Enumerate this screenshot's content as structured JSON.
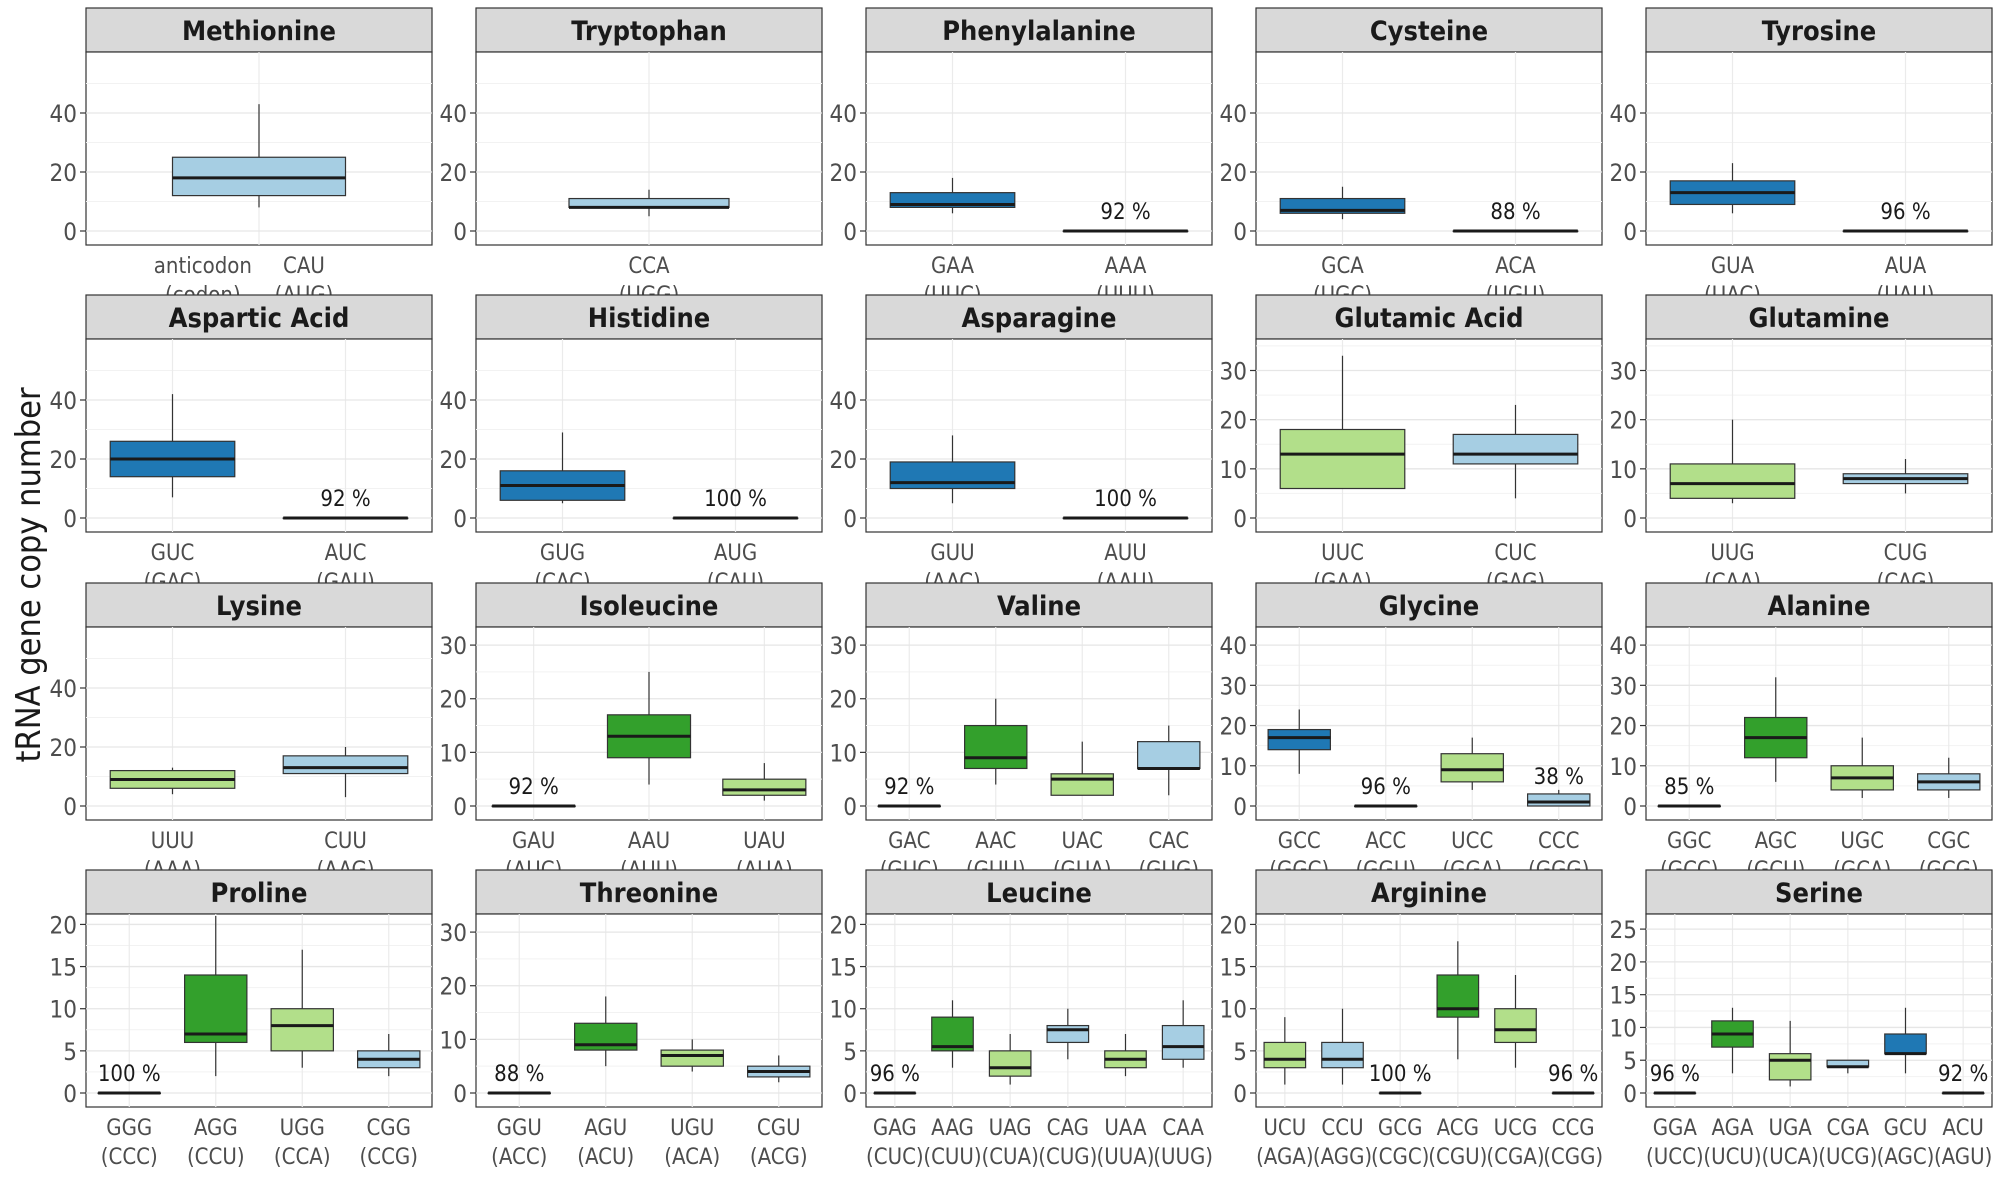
{
  "chart_data": {
    "type": "box",
    "ylabel": "tRNA gene copy number",
    "colors": {
      "dark_blue": "#1f78b4",
      "light_blue": "#a6cee3",
      "dark_green": "#33a02c",
      "light_green": "#b2df8a"
    },
    "panels": [
      {
        "title": "Methionine",
        "ylim": [
          0,
          60
        ],
        "yticks": [
          0,
          20,
          40
        ],
        "boxes": [
          {
            "codon": "CAU",
            "aa_codon": "(AUG)",
            "color": "light_blue",
            "min": 8,
            "q1": 12,
            "median": 18,
            "q3": 25,
            "max": 43
          }
        ],
        "key": {
          "codon": "anticodon",
          "aa_codon": "(codon)"
        }
      },
      {
        "title": "Tryptophan",
        "ylim": [
          0,
          60
        ],
        "yticks": [
          0,
          20,
          40
        ],
        "boxes": [
          {
            "codon": "CCA",
            "aa_codon": "(UGG)",
            "color": "light_blue",
            "min": 5,
            "q1": 8,
            "median": 8,
            "q3": 11,
            "max": 14
          }
        ]
      },
      {
        "title": "Phenylalanine",
        "ylim": [
          0,
          60
        ],
        "yticks": [
          0,
          20,
          40
        ],
        "boxes": [
          {
            "codon": "GAA",
            "aa_codon": "(UUC)",
            "color": "dark_blue",
            "min": 6,
            "q1": 8,
            "median": 9,
            "q3": 13,
            "max": 18
          },
          {
            "codon": "AAA",
            "aa_codon": "(UUU)",
            "color": "dark_blue",
            "min": 0,
            "q1": 0,
            "median": 0,
            "q3": 0,
            "max": 0,
            "pct": "92 %"
          }
        ]
      },
      {
        "title": "Cysteine",
        "ylim": [
          0,
          60
        ],
        "yticks": [
          0,
          20,
          40
        ],
        "boxes": [
          {
            "codon": "GCA",
            "aa_codon": "(UGC)",
            "color": "dark_blue",
            "min": 4,
            "q1": 6,
            "median": 7,
            "q3": 11,
            "max": 15
          },
          {
            "codon": "ACA",
            "aa_codon": "(UGU)",
            "color": "dark_blue",
            "min": 0,
            "q1": 0,
            "median": 0,
            "q3": 0,
            "max": 0,
            "pct": "88 %"
          }
        ]
      },
      {
        "title": "Tyrosine",
        "ylim": [
          0,
          60
        ],
        "yticks": [
          0,
          20,
          40
        ],
        "boxes": [
          {
            "codon": "GUA",
            "aa_codon": "(UAC)",
            "color": "dark_blue",
            "min": 6,
            "q1": 9,
            "median": 13,
            "q3": 17,
            "max": 23
          },
          {
            "codon": "AUA",
            "aa_codon": "(UAU)",
            "color": "dark_blue",
            "min": 0,
            "q1": 0,
            "median": 0,
            "q3": 0,
            "max": 0,
            "pct": "96 %"
          }
        ]
      },
      {
        "title": "Aspartic Acid",
        "ylim": [
          0,
          60
        ],
        "yticks": [
          0,
          20,
          40
        ],
        "boxes": [
          {
            "codon": "GUC",
            "aa_codon": "(GAC)",
            "color": "dark_blue",
            "min": 7,
            "q1": 14,
            "median": 20,
            "q3": 26,
            "max": 42
          },
          {
            "codon": "AUC",
            "aa_codon": "(GAU)",
            "color": "dark_blue",
            "min": 0,
            "q1": 0,
            "median": 0,
            "q3": 0,
            "max": 0,
            "pct": "92 %"
          }
        ]
      },
      {
        "title": "Histidine",
        "ylim": [
          0,
          60
        ],
        "yticks": [
          0,
          20,
          40
        ],
        "boxes": [
          {
            "codon": "GUG",
            "aa_codon": "(CAC)",
            "color": "dark_blue",
            "min": 5,
            "q1": 6,
            "median": 11,
            "q3": 16,
            "max": 29
          },
          {
            "codon": "AUG",
            "aa_codon": "(CAU)",
            "color": "dark_blue",
            "min": 0,
            "q1": 0,
            "median": 0,
            "q3": 0,
            "max": 0,
            "pct": "100 %"
          }
        ]
      },
      {
        "title": "Asparagine",
        "ylim": [
          0,
          60
        ],
        "yticks": [
          0,
          20,
          40
        ],
        "boxes": [
          {
            "codon": "GUU",
            "aa_codon": "(AAC)",
            "color": "dark_blue",
            "min": 5,
            "q1": 10,
            "median": 12,
            "q3": 19,
            "max": 28
          },
          {
            "codon": "AUU",
            "aa_codon": "(AAU)",
            "color": "dark_blue",
            "min": 0,
            "q1": 0,
            "median": 0,
            "q3": 0,
            "max": 0,
            "pct": "100 %"
          }
        ]
      },
      {
        "title": "Glutamic Acid",
        "ylim": [
          0,
          36
        ],
        "yticks": [
          0,
          10,
          20,
          30
        ],
        "boxes": [
          {
            "codon": "UUC",
            "aa_codon": "(GAA)",
            "color": "light_green",
            "min": 6,
            "q1": 6,
            "median": 13,
            "q3": 18,
            "max": 33
          },
          {
            "codon": "CUC",
            "aa_codon": "(GAG)",
            "color": "light_blue",
            "min": 4,
            "q1": 11,
            "median": 13,
            "q3": 17,
            "max": 23
          }
        ]
      },
      {
        "title": "Glutamine",
        "ylim": [
          0,
          36
        ],
        "yticks": [
          0,
          10,
          20,
          30
        ],
        "boxes": [
          {
            "codon": "UUG",
            "aa_codon": "(CAA)",
            "color": "light_green",
            "min": 3,
            "q1": 4,
            "median": 7,
            "q3": 11,
            "max": 20
          },
          {
            "codon": "CUG",
            "aa_codon": "(CAG)",
            "color": "light_blue",
            "min": 5,
            "q1": 7,
            "median": 8,
            "q3": 9,
            "max": 12
          }
        ]
      },
      {
        "title": "Lysine",
        "ylim": [
          0,
          60
        ],
        "yticks": [
          0,
          20,
          40
        ],
        "boxes": [
          {
            "codon": "UUU",
            "aa_codon": "(AAA)",
            "color": "light_green",
            "min": 4,
            "q1": 6,
            "median": 9,
            "q3": 12,
            "max": 13
          },
          {
            "codon": "CUU",
            "aa_codon": "(AAG)",
            "color": "light_blue",
            "min": 3,
            "q1": 11,
            "median": 13,
            "q3": 17,
            "max": 20
          }
        ]
      },
      {
        "title": "Isoleucine",
        "ylim": [
          0,
          33
        ],
        "yticks": [
          0,
          10,
          20,
          30
        ],
        "boxes": [
          {
            "codon": "GAU",
            "aa_codon": "(AUC)",
            "color": "dark_blue",
            "min": 0,
            "q1": 0,
            "median": 0,
            "q3": 0,
            "max": 0,
            "pct": "92 %"
          },
          {
            "codon": "AAU",
            "aa_codon": "(AUU)",
            "color": "dark_green",
            "min": 4,
            "q1": 9,
            "median": 13,
            "q3": 17,
            "max": 25
          },
          {
            "codon": "UAU",
            "aa_codon": "(AUA)",
            "color": "light_green",
            "min": 1,
            "q1": 2,
            "median": 3,
            "q3": 5,
            "max": 8
          }
        ]
      },
      {
        "title": "Valine",
        "ylim": [
          0,
          33
        ],
        "yticks": [
          0,
          10,
          20,
          30
        ],
        "boxes": [
          {
            "codon": "GAC",
            "aa_codon": "(GUC)",
            "color": "dark_blue",
            "min": 0,
            "q1": 0,
            "median": 0,
            "q3": 0,
            "max": 0,
            "pct": "92 %"
          },
          {
            "codon": "AAC",
            "aa_codon": "(GUU)",
            "color": "dark_green",
            "min": 4,
            "q1": 7,
            "median": 9,
            "q3": 15,
            "max": 20
          },
          {
            "codon": "UAC",
            "aa_codon": "(GUA)",
            "color": "light_green",
            "min": 2,
            "q1": 2,
            "median": 5,
            "q3": 6,
            "max": 12
          },
          {
            "codon": "CAC",
            "aa_codon": "(GUG)",
            "color": "light_blue",
            "min": 2,
            "q1": 7,
            "median": 7,
            "q3": 12,
            "max": 15
          }
        ]
      },
      {
        "title": "Glycine",
        "ylim": [
          0,
          44
        ],
        "yticks": [
          0,
          10,
          20,
          30,
          40
        ],
        "boxes": [
          {
            "codon": "GCC",
            "aa_codon": "(GGC)",
            "color": "dark_blue",
            "min": 8,
            "q1": 14,
            "median": 17,
            "q3": 19,
            "max": 24
          },
          {
            "codon": "ACC",
            "aa_codon": "(GGU)",
            "color": "dark_blue",
            "min": 0,
            "q1": 0,
            "median": 0,
            "q3": 0,
            "max": 0,
            "pct": "96 %"
          },
          {
            "codon": "UCC",
            "aa_codon": "(GGA)",
            "color": "light_green",
            "min": 4,
            "q1": 6,
            "median": 9,
            "q3": 13,
            "max": 17
          },
          {
            "codon": "CCC",
            "aa_codon": "(GGG)",
            "color": "light_blue",
            "min": 0,
            "q1": 0,
            "median": 1,
            "q3": 3,
            "max": 4,
            "pct": "38 %"
          }
        ]
      },
      {
        "title": "Alanine",
        "ylim": [
          0,
          44
        ],
        "yticks": [
          0,
          10,
          20,
          30,
          40
        ],
        "boxes": [
          {
            "codon": "GGC",
            "aa_codon": "(GCC)",
            "color": "dark_blue",
            "min": 0,
            "q1": 0,
            "median": 0,
            "q3": 0,
            "max": 0,
            "pct": "85 %"
          },
          {
            "codon": "AGC",
            "aa_codon": "(GCU)",
            "color": "dark_green",
            "min": 6,
            "q1": 12,
            "median": 17,
            "q3": 22,
            "max": 32
          },
          {
            "codon": "UGC",
            "aa_codon": "(GCA)",
            "color": "light_green",
            "min": 2,
            "q1": 4,
            "median": 7,
            "q3": 10,
            "max": 17
          },
          {
            "codon": "CGC",
            "aa_codon": "(GCG)",
            "color": "light_blue",
            "min": 2,
            "q1": 4,
            "median": 6,
            "q3": 8,
            "max": 12
          }
        ]
      },
      {
        "title": "Proline",
        "ylim": [
          0,
          21
        ],
        "yticks": [
          0,
          5,
          10,
          15,
          20
        ],
        "boxes": [
          {
            "codon": "GGG",
            "aa_codon": "(CCC)",
            "color": "dark_blue",
            "min": 0,
            "q1": 0,
            "median": 0,
            "q3": 0,
            "max": 0,
            "pct": "100 %"
          },
          {
            "codon": "AGG",
            "aa_codon": "(CCU)",
            "color": "dark_green",
            "min": 2,
            "q1": 6,
            "median": 7,
            "q3": 14,
            "max": 21
          },
          {
            "codon": "UGG",
            "aa_codon": "(CCA)",
            "color": "light_green",
            "min": 3,
            "q1": 5,
            "median": 8,
            "q3": 10,
            "max": 17
          },
          {
            "codon": "CGG",
            "aa_codon": "(CCG)",
            "color": "light_blue",
            "min": 2,
            "q1": 3,
            "median": 4,
            "q3": 5,
            "max": 7
          }
        ]
      },
      {
        "title": "Threonine",
        "ylim": [
          0,
          33
        ],
        "yticks": [
          0,
          10,
          20,
          30
        ],
        "boxes": [
          {
            "codon": "GGU",
            "aa_codon": "(ACC)",
            "color": "dark_blue",
            "min": 0,
            "q1": 0,
            "median": 0,
            "q3": 0,
            "max": 0,
            "pct": "88 %"
          },
          {
            "codon": "AGU",
            "aa_codon": "(ACU)",
            "color": "dark_green",
            "min": 5,
            "q1": 8,
            "median": 9,
            "q3": 13,
            "max": 18
          },
          {
            "codon": "UGU",
            "aa_codon": "(ACA)",
            "color": "light_green",
            "min": 4,
            "q1": 5,
            "median": 7,
            "q3": 8,
            "max": 10
          },
          {
            "codon": "CGU",
            "aa_codon": "(ACG)",
            "color": "light_blue",
            "min": 2,
            "q1": 3,
            "median": 4,
            "q3": 5,
            "max": 7
          }
        ]
      },
      {
        "title": "Leucine",
        "ylim": [
          0,
          21
        ],
        "yticks": [
          0,
          5,
          10,
          15,
          20
        ],
        "boxes": [
          {
            "codon": "GAG",
            "aa_codon": "(CUC)",
            "color": "dark_blue",
            "min": 0,
            "q1": 0,
            "median": 0,
            "q3": 0,
            "max": 0,
            "pct": "96 %"
          },
          {
            "codon": "AAG",
            "aa_codon": "(CUU)",
            "color": "dark_green",
            "min": 3,
            "q1": 5,
            "median": 5.5,
            "q3": 9,
            "max": 11
          },
          {
            "codon": "UAG",
            "aa_codon": "(CUA)",
            "color": "light_green",
            "min": 1,
            "q1": 2,
            "median": 3,
            "q3": 5,
            "max": 7
          },
          {
            "codon": "CAG",
            "aa_codon": "(CUG)",
            "color": "light_blue",
            "min": 4,
            "q1": 6,
            "median": 7.5,
            "q3": 8,
            "max": 10
          },
          {
            "codon": "UAA",
            "aa_codon": "(UUA)",
            "color": "light_green",
            "min": 2,
            "q1": 3,
            "median": 4,
            "q3": 5,
            "max": 7
          },
          {
            "codon": "CAA",
            "aa_codon": "(UUG)",
            "color": "light_blue",
            "min": 3,
            "q1": 4,
            "median": 5.5,
            "q3": 8,
            "max": 11
          }
        ]
      },
      {
        "title": "Arginine",
        "ylim": [
          0,
          21
        ],
        "yticks": [
          0,
          5,
          10,
          15,
          20
        ],
        "boxes": [
          {
            "codon": "UCU",
            "aa_codon": "(AGA)",
            "color": "light_green",
            "min": 1,
            "q1": 3,
            "median": 4,
            "q3": 6,
            "max": 9
          },
          {
            "codon": "CCU",
            "aa_codon": "(AGG)",
            "color": "light_blue",
            "min": 1,
            "q1": 3,
            "median": 4,
            "q3": 6,
            "max": 10
          },
          {
            "codon": "GCG",
            "aa_codon": "(CGC)",
            "color": "dark_blue",
            "min": 0,
            "q1": 0,
            "median": 0,
            "q3": 0,
            "max": 0,
            "pct": "100 %"
          },
          {
            "codon": "ACG",
            "aa_codon": "(CGU)",
            "color": "dark_green",
            "min": 4,
            "q1": 9,
            "median": 10,
            "q3": 14,
            "max": 18
          },
          {
            "codon": "UCG",
            "aa_codon": "(CGA)",
            "color": "light_green",
            "min": 3,
            "q1": 6,
            "median": 7.5,
            "q3": 10,
            "max": 14
          },
          {
            "codon": "CCG",
            "aa_codon": "(CGG)",
            "color": "light_blue",
            "min": 0,
            "q1": 0,
            "median": 0,
            "q3": 0,
            "max": 0,
            "pct": "96 %"
          }
        ]
      },
      {
        "title": "Serine",
        "ylim": [
          0,
          27
        ],
        "yticks": [
          0,
          5,
          10,
          15,
          20,
          25
        ],
        "boxes": [
          {
            "codon": "GGA",
            "aa_codon": "(UCC)",
            "color": "dark_blue",
            "min": 0,
            "q1": 0,
            "median": 0,
            "q3": 0,
            "max": 0,
            "pct": "96 %"
          },
          {
            "codon": "AGA",
            "aa_codon": "(UCU)",
            "color": "dark_green",
            "min": 3,
            "q1": 7,
            "median": 9,
            "q3": 11,
            "max": 13
          },
          {
            "codon": "UGA",
            "aa_codon": "(UCA)",
            "color": "light_green",
            "min": 1,
            "q1": 2,
            "median": 5,
            "q3": 6,
            "max": 11
          },
          {
            "codon": "CGA",
            "aa_codon": "(UCG)",
            "color": "light_blue",
            "min": 3,
            "q1": 4,
            "median": 4,
            "q3": 5,
            "max": 5
          },
          {
            "codon": "GCU",
            "aa_codon": "(AGC)",
            "color": "dark_blue",
            "min": 3,
            "q1": 6,
            "median": 6,
            "q3": 9,
            "max": 13
          },
          {
            "codon": "ACU",
            "aa_codon": "(AGU)",
            "color": "dark_blue",
            "min": 0,
            "q1": 0,
            "median": 0,
            "q3": 0,
            "max": 0,
            "pct": "92 %"
          }
        ]
      }
    ]
  }
}
